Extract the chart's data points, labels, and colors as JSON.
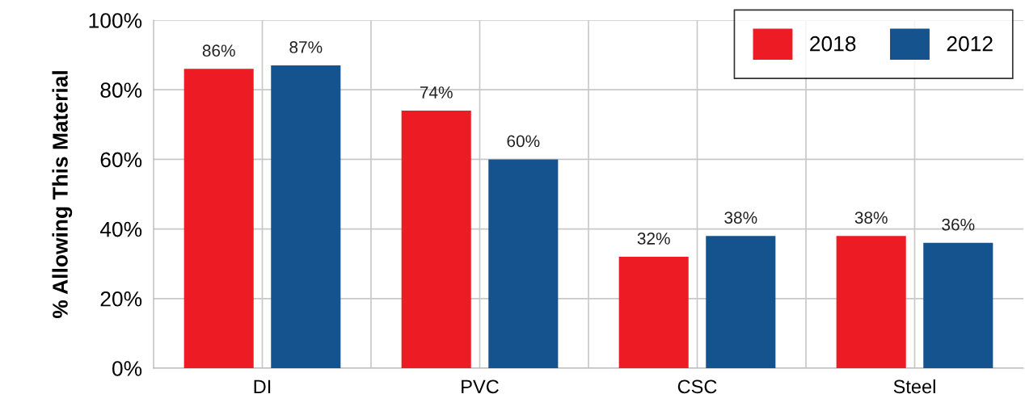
{
  "chart_data": {
    "type": "bar",
    "ylabel": "% Allowing This Material",
    "categories": [
      "DI",
      "PVC",
      "CSC",
      "Steel"
    ],
    "series": [
      {
        "name": "2018",
        "color": "#ed1c24",
        "values": [
          86,
          74,
          32,
          38
        ],
        "value_labels": [
          "86%",
          "74%",
          "32%",
          "38%"
        ]
      },
      {
        "name": "2012",
        "color": "#15538f",
        "values": [
          87,
          60,
          38,
          36
        ],
        "value_labels": [
          "87%",
          "60%",
          "38%",
          "36%"
        ]
      }
    ],
    "ylim": [
      0,
      100
    ],
    "yticks": [
      {
        "value": 0,
        "label": "0%"
      },
      {
        "value": 20,
        "label": "20%"
      },
      {
        "value": 40,
        "label": "40%"
      },
      {
        "value": 60,
        "label": "60%"
      },
      {
        "value": 80,
        "label": "80%"
      },
      {
        "value": 100,
        "label": "100%"
      }
    ],
    "grid": true,
    "legend": "top right"
  }
}
